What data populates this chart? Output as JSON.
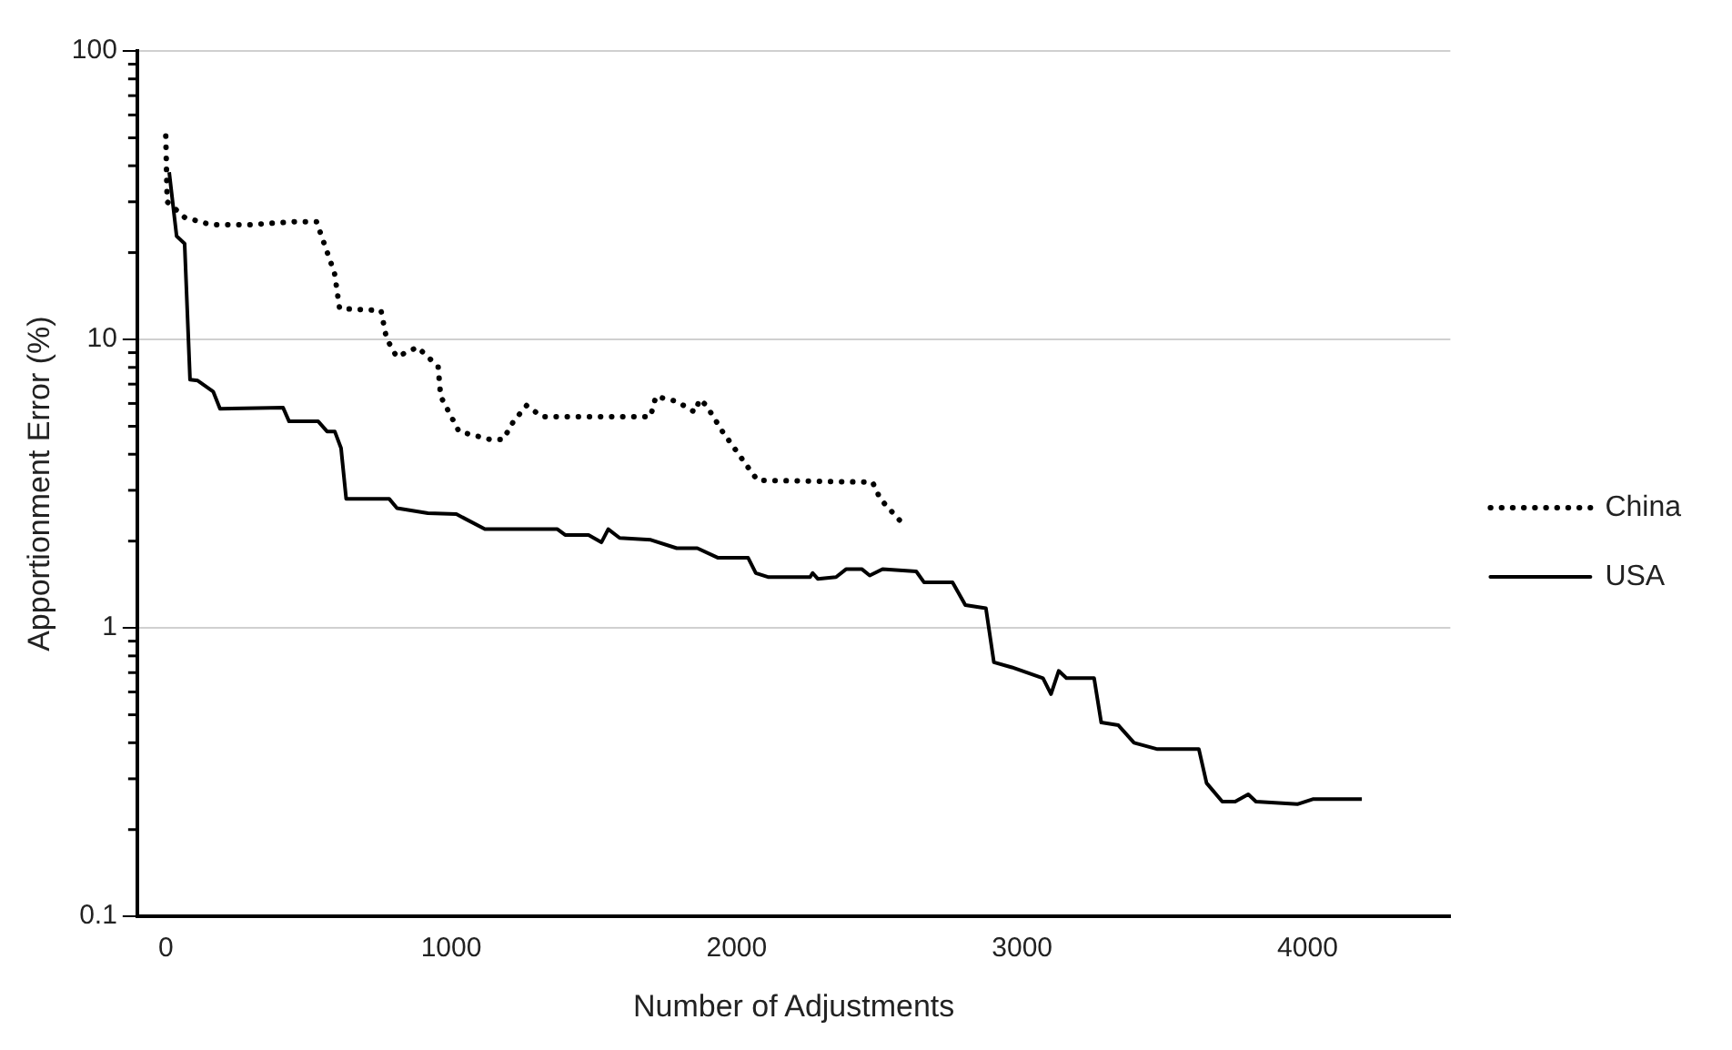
{
  "chart_data": {
    "type": "line",
    "xlabel": "Number of Adjustments",
    "ylabel": "Apportionment Error (%)",
    "xlim": [
      -100,
      4500
    ],
    "xticks": [
      0,
      1000,
      2000,
      3000,
      4000
    ],
    "ylim": [
      0.1,
      100
    ],
    "yticks": [
      0.1,
      1,
      10,
      100
    ],
    "log": "y",
    "grid": "y",
    "legend": "right",
    "marker": "none",
    "series": [
      {
        "name": "China",
        "color": "#000000",
        "line_style": "dotted",
        "x": [
          0,
          5,
          66,
          157,
          300,
          450,
          528,
          591,
          609,
          754,
          773,
          809,
          882,
          954,
          963,
          1027,
          1136,
          1182,
          1218,
          1264,
          1318,
          1500,
          1698,
          1717,
          1790,
          1853,
          1871,
          1894,
          1950,
          2040,
          2073,
          2476,
          2503,
          2590
        ],
        "values": [
          50.7,
          30,
          26.5,
          25,
          25,
          25.6,
          25.6,
          17,
          12.8,
          12.6,
          10.1,
          8.7,
          9.4,
          8.05,
          6.35,
          4.8,
          4.5,
          4.5,
          5.2,
          5.9,
          5.4,
          5.4,
          5.4,
          6.35,
          6.1,
          5.6,
          6.2,
          5.9,
          4.8,
          3.6,
          3.25,
          3.2,
          2.8,
          2.25
        ]
      },
      {
        "name": "USA",
        "color": "#000000",
        "line_style": "solid",
        "x": [
          12,
          38,
          66,
          85,
          112,
          166,
          190,
          411,
          432,
          534,
          565,
          592,
          614,
          632,
          783,
          810,
          918,
          1018,
          1118,
          1372,
          1399,
          1481,
          1526,
          1550,
          1590,
          1699,
          1790,
          1862,
          1935,
          2040,
          2067,
          2112,
          2257,
          2266,
          2284,
          2348,
          2384,
          2438,
          2466,
          2511,
          2629,
          2656,
          2756,
          2801,
          2873,
          2901,
          2964,
          3073,
          3101,
          3128,
          3155,
          3252,
          3277,
          3337,
          3392,
          3474,
          3619,
          3646,
          3701,
          3746,
          3792,
          3819,
          3964,
          4018,
          4190
        ],
        "values": [
          38,
          22.8,
          21.5,
          7.25,
          7.2,
          6.6,
          5.75,
          5.8,
          5.2,
          5.2,
          4.8,
          4.8,
          4.2,
          2.8,
          2.8,
          2.6,
          2.5,
          2.48,
          2.2,
          2.2,
          2.1,
          2.1,
          1.98,
          2.2,
          2.05,
          2.02,
          1.89,
          1.89,
          1.75,
          1.75,
          1.55,
          1.5,
          1.5,
          1.55,
          1.48,
          1.5,
          1.6,
          1.6,
          1.52,
          1.6,
          1.57,
          1.44,
          1.44,
          1.2,
          1.17,
          0.76,
          0.73,
          0.67,
          0.59,
          0.71,
          0.67,
          0.67,
          0.47,
          0.46,
          0.4,
          0.38,
          0.38,
          0.29,
          0.25,
          0.25,
          0.265,
          0.25,
          0.245,
          0.255,
          0.255
        ]
      }
    ]
  }
}
